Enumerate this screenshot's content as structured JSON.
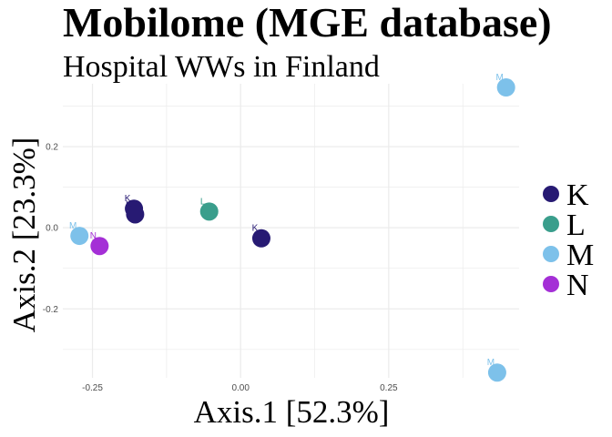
{
  "chart_data": {
    "type": "scatter",
    "title": "Mobilome (MGE database)",
    "subtitle": "Hospital WWs in Finland",
    "xlabel": "Axis.1   [52.3%]",
    "ylabel": "Axis.2   [23.3%]",
    "xlim": [
      -0.3,
      0.47
    ],
    "ylim": [
      -0.37,
      0.355
    ],
    "x_ticks": [
      -0.25,
      0.0,
      0.25
    ],
    "x_tick_labels": [
      "-0.25",
      "0.00",
      "0.25"
    ],
    "y_ticks": [
      -0.2,
      0.0,
      0.2
    ],
    "y_tick_labels": [
      "-0.2",
      "0.0",
      "0.2"
    ],
    "grid": true,
    "legend_position": "right",
    "series": [
      {
        "name": "K",
        "color": "#271a73",
        "points": [
          {
            "x": -0.18,
            "y": 0.047,
            "label": "K"
          },
          {
            "x": -0.178,
            "y": 0.033,
            "label": "K"
          },
          {
            "x": 0.035,
            "y": -0.026,
            "label": "K"
          }
        ]
      },
      {
        "name": "L",
        "color": "#3a9e8c",
        "points": [
          {
            "x": -0.053,
            "y": 0.04,
            "label": "L"
          }
        ]
      },
      {
        "name": "M",
        "color": "#7dc1ea",
        "points": [
          {
            "x": -0.272,
            "y": -0.02,
            "label": "M"
          },
          {
            "x": 0.448,
            "y": 0.346,
            "label": "M"
          },
          {
            "x": 0.433,
            "y": -0.357,
            "label": "M"
          }
        ]
      },
      {
        "name": "N",
        "color": "#a42fd6",
        "points": [
          {
            "x": -0.238,
            "y": -0.045,
            "label": "N"
          }
        ]
      }
    ]
  }
}
